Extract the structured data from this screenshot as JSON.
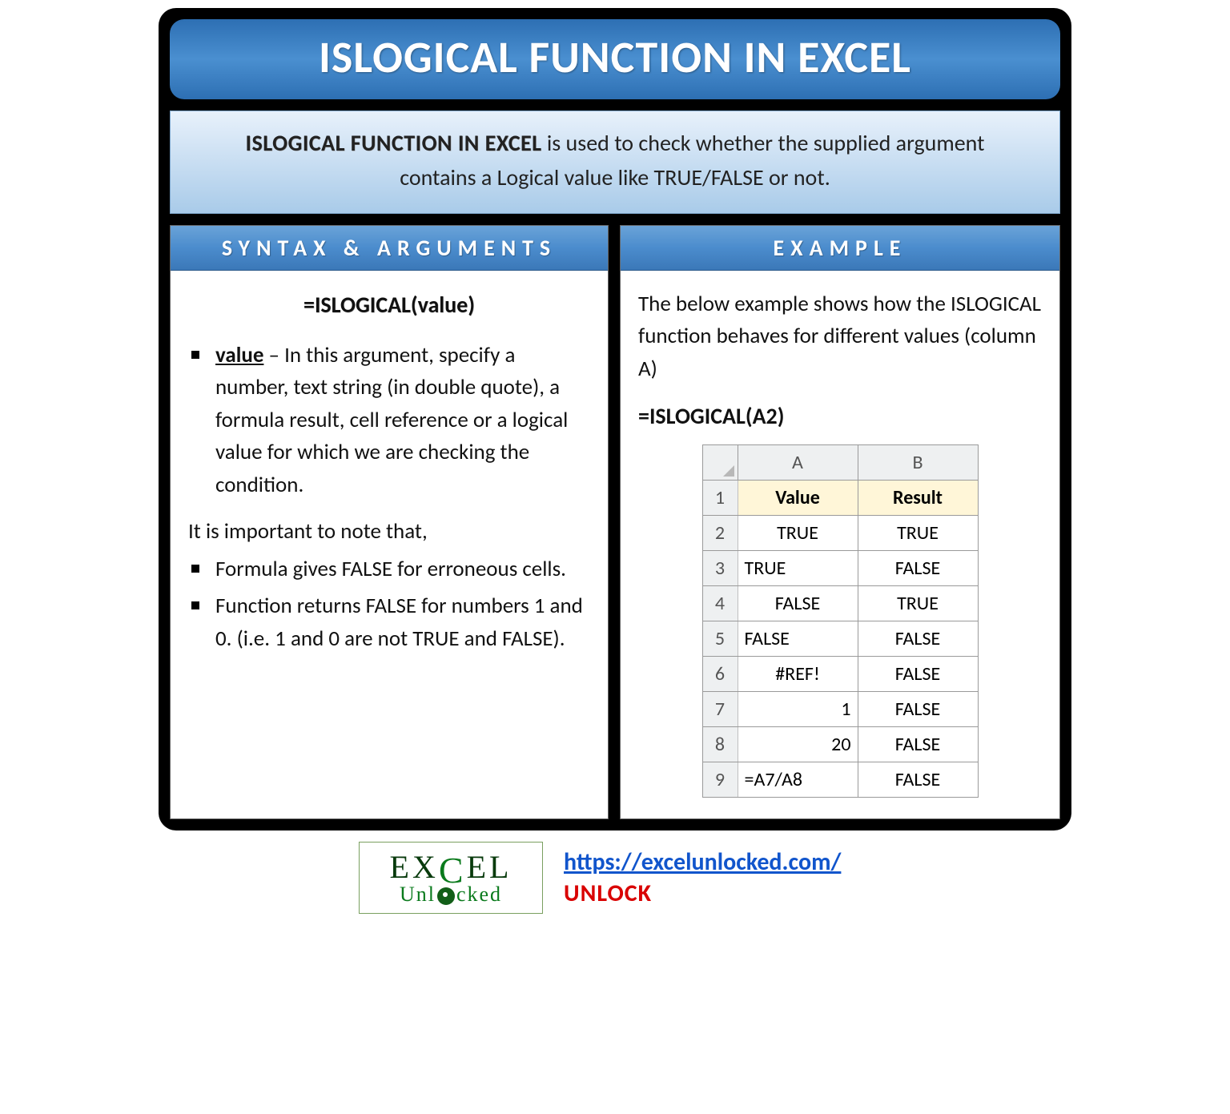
{
  "title": "ISLOGICAL FUNCTION IN EXCEL",
  "description": {
    "strong": "ISLOGICAL FUNCTION IN EXCEL",
    "rest1": " is used to check whether the supplied argument",
    "rest2": "contains a Logical value like TRUE/FALSE or not."
  },
  "syntax": {
    "header": "SYNTAX & ARGUMENTS",
    "formula": "=ISLOGICAL(value)",
    "arg_name": "value",
    "arg_desc": " – In this argument, specify a number, text string (in double quote), a formula result, cell reference or a logical value for which we are checking the condition.",
    "note_lead": "It is important to note that,",
    "note1": "Formula gives FALSE for erroneous cells.",
    "note2": "Function returns FALSE for numbers 1 and 0. (i.e. 1 and 0 are not TRUE and FALSE)."
  },
  "example": {
    "header": "EXAMPLE",
    "intro": "The below example shows how the ISLOGICAL function behaves for different values (column A)",
    "formula": "=ISLOGICAL(A2)",
    "grid": {
      "col_headers": [
        "A",
        "B"
      ],
      "header_row": [
        "Value",
        "Result"
      ],
      "rows": [
        {
          "n": "2",
          "a": "TRUE",
          "a_align": "center",
          "b": "TRUE"
        },
        {
          "n": "3",
          "a": "TRUE",
          "a_align": "left",
          "b": "FALSE"
        },
        {
          "n": "4",
          "a": "FALSE",
          "a_align": "center",
          "b": "TRUE"
        },
        {
          "n": "5",
          "a": "FALSE",
          "a_align": "left",
          "b": "FALSE"
        },
        {
          "n": "6",
          "a": "#REF!",
          "a_align": "center",
          "b": "FALSE"
        },
        {
          "n": "7",
          "a": "1",
          "a_align": "right",
          "b": "FALSE"
        },
        {
          "n": "8",
          "a": "20",
          "a_align": "right",
          "b": "FALSE"
        },
        {
          "n": "9",
          "a": "=A7/A8",
          "a_align": "left",
          "b": "FALSE"
        }
      ]
    }
  },
  "footer": {
    "logo_top_pre": "EX",
    "logo_top_post": "EL",
    "logo_sub_pre": "Unl",
    "logo_sub_post": "cked",
    "url": "https://excelunlocked.com/",
    "unlock": "UNLOCK"
  },
  "colors": {
    "page_bg": "#000000",
    "title_gradient_top": "#2d6fb3",
    "title_gradient_mid": "#4a8fd0",
    "title_text": "#ffffff",
    "desc_gradient_top": "#e8f1fb",
    "desc_gradient_bottom": "#a9cbe9",
    "panel_head_gradient_top": "#6aa3d8",
    "panel_head_gradient_bottom": "#3b78b8",
    "excel_header_bg": "#eef0f1",
    "excel_hdr_cell_bg": "#fff6d8",
    "link_color": "#1155cc",
    "unlock_color": "#d90000",
    "logo_green": "#0a7a1c"
  }
}
